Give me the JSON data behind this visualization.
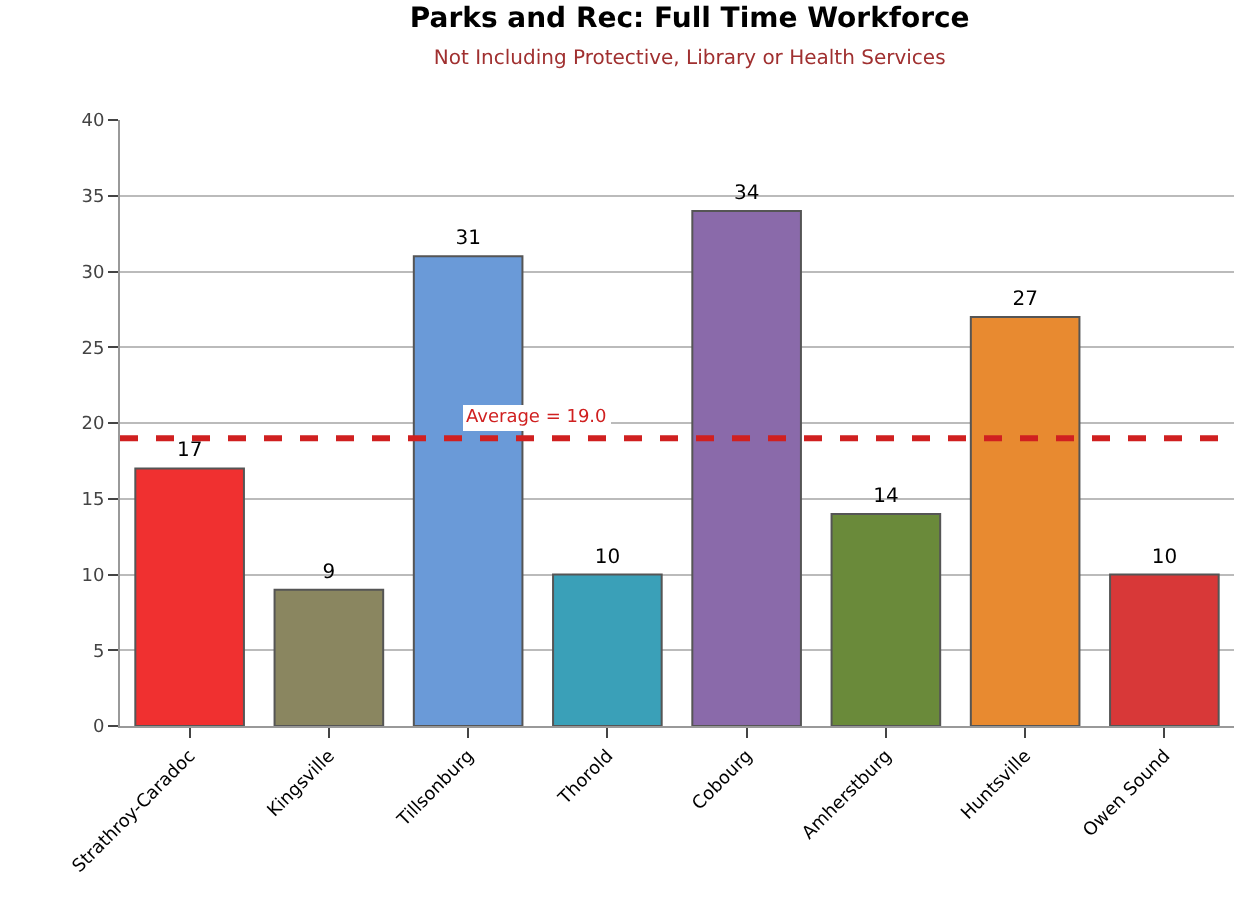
{
  "chart_data": {
    "type": "bar",
    "title": "Parks and Rec: Full Time Workforce",
    "subtitle": "Not Including Protective, Library or Health Services",
    "categories": [
      "Strathroy-Caradoc",
      "Kingsville",
      "Tillsonburg",
      "Thorold",
      "Cobourg",
      "Amherstburg",
      "Huntsville",
      "Owen Sound"
    ],
    "values": [
      17,
      9,
      31,
      10,
      34,
      14,
      27,
      10
    ],
    "colors": [
      "#f03030",
      "#8a8660",
      "#6a9ad8",
      "#3aa0b8",
      "#8a6aaa",
      "#6a8a3a",
      "#e88a30",
      "#d83838"
    ],
    "ylim": [
      0,
      40
    ],
    "yticks": [
      0,
      5,
      10,
      15,
      20,
      25,
      30,
      35,
      40
    ],
    "grid": "y",
    "data_labels": true,
    "ref_lines": [
      {
        "axis": "y",
        "value": 19.0,
        "label": "Average = 19.0",
        "color": "#d02020",
        "line_style": "dashed"
      }
    ]
  }
}
